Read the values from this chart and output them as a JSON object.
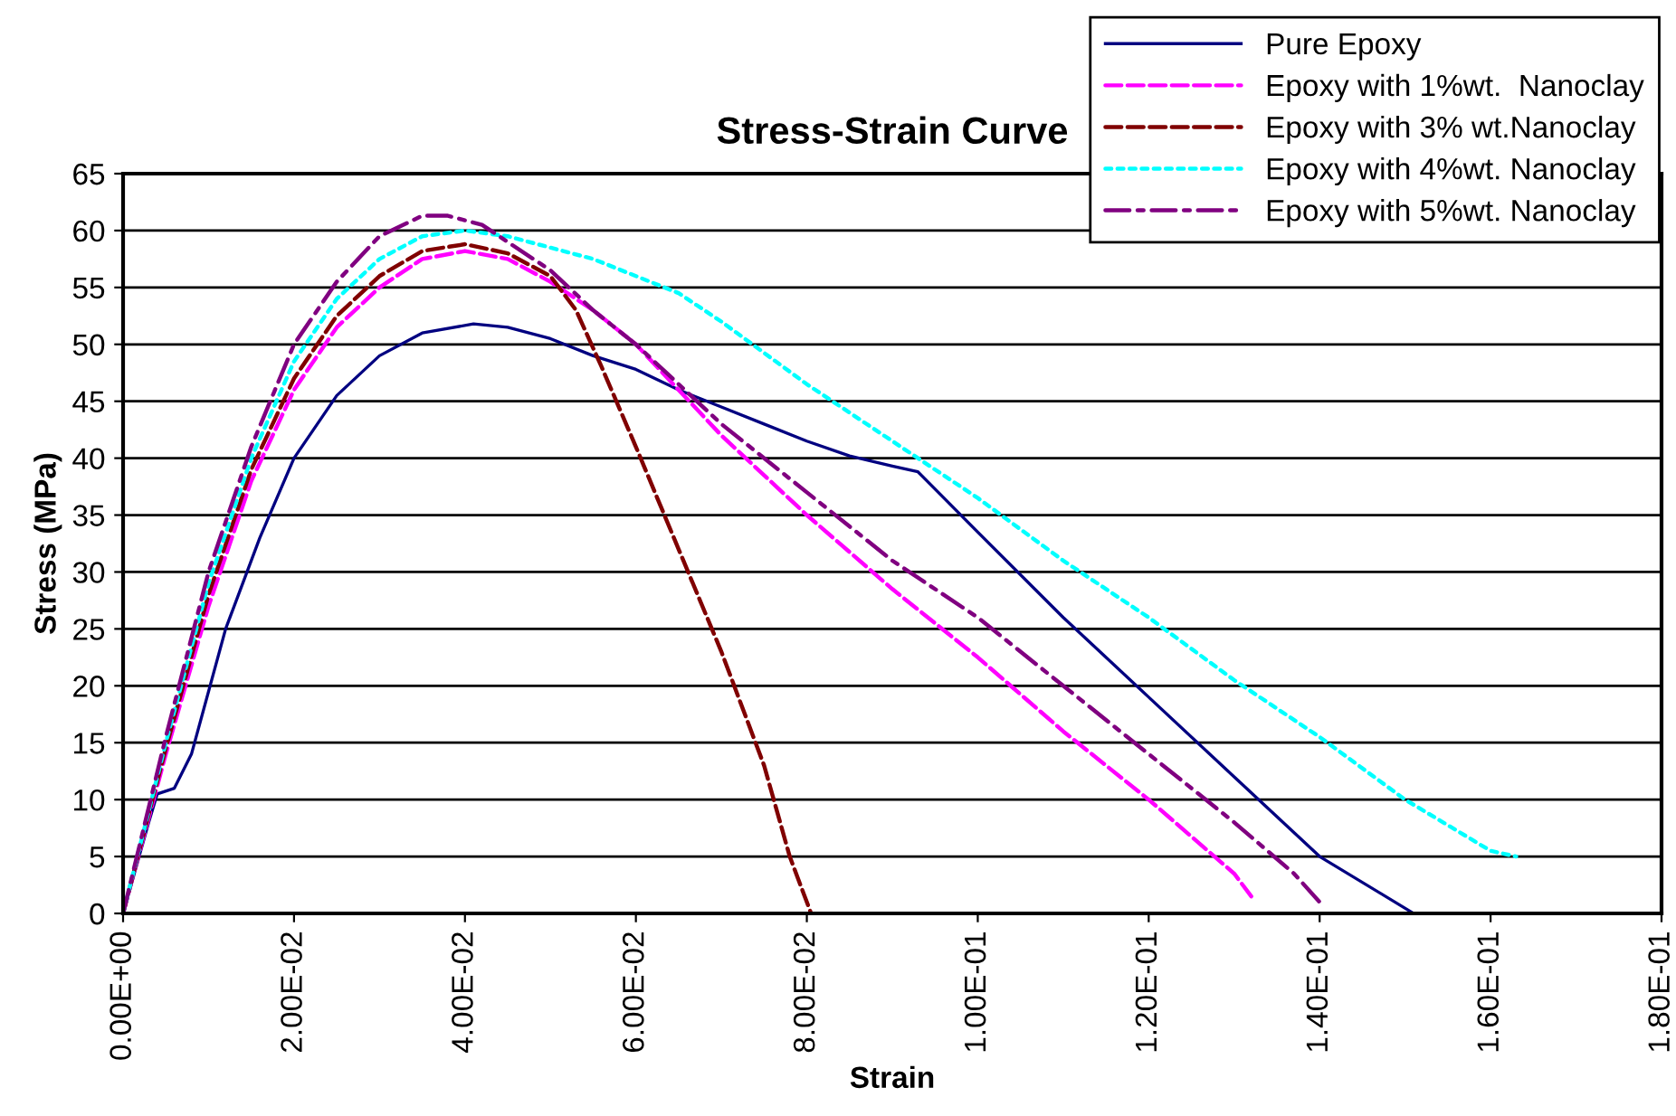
{
  "chart_data": {
    "type": "line",
    "title": "Stress-Strain Curve",
    "xlabel": "Strain",
    "ylabel": "Stress (MPa)",
    "xlim": [
      0,
      0.18
    ],
    "ylim": [
      0,
      65
    ],
    "xticks": [
      {
        "value": 0,
        "label": "0.00E+00"
      },
      {
        "value": 0.02,
        "label": "2.00E-02"
      },
      {
        "value": 0.04,
        "label": "4.00E-02"
      },
      {
        "value": 0.06,
        "label": "6.00E-02"
      },
      {
        "value": 0.08,
        "label": "8.00E-02"
      },
      {
        "value": 0.1,
        "label": "1.00E-01"
      },
      {
        "value": 0.12,
        "label": "1.20E-01"
      },
      {
        "value": 0.14,
        "label": "1.40E-01"
      },
      {
        "value": 0.16,
        "label": "1.60E-01"
      },
      {
        "value": 0.18,
        "label": "1.80E-01"
      }
    ],
    "yticks": [
      0,
      5,
      10,
      15,
      20,
      25,
      30,
      35,
      40,
      45,
      50,
      55,
      60,
      65
    ],
    "grid": "y",
    "legend": "top right",
    "marker": "none",
    "series": [
      {
        "name": "Pure Epoxy",
        "color": "#000080",
        "line_style": "solid",
        "x": [
          0,
          0.003,
          0.004,
          0.006,
          0.008,
          0.012,
          0.016,
          0.02,
          0.025,
          0.03,
          0.035,
          0.041,
          0.045,
          0.05,
          0.055,
          0.06,
          0.065,
          0.07,
          0.075,
          0.08,
          0.085,
          0.09,
          0.093,
          0.1,
          0.11,
          0.12,
          0.13,
          0.14,
          0.151
        ],
        "values": [
          0,
          8,
          10.5,
          11,
          14,
          25,
          33,
          40,
          45.5,
          49,
          51,
          51.8,
          51.5,
          50.5,
          49,
          47.8,
          46,
          44.5,
          43,
          41.5,
          40.2,
          39.3,
          38.8,
          33.5,
          26,
          19,
          12,
          5,
          0
        ]
      },
      {
        "name": "Epoxy with 1%wt.  Nanoclay",
        "color": "#ff00ff",
        "line_style": "dashed",
        "x": [
          0,
          0.005,
          0.01,
          0.015,
          0.02,
          0.025,
          0.03,
          0.035,
          0.04,
          0.045,
          0.05,
          0.055,
          0.06,
          0.065,
          0.07,
          0.08,
          0.09,
          0.1,
          0.11,
          0.12,
          0.13,
          0.132
        ],
        "values": [
          0,
          14,
          27,
          38,
          46,
          51.5,
          55,
          57.5,
          58.2,
          57.5,
          55.5,
          53,
          50,
          46,
          42,
          35,
          28.5,
          22.5,
          16,
          10,
          3.5,
          1.5
        ]
      },
      {
        "name": "Epoxy with 3% wt.Nanoclay",
        "color": "#800000",
        "line_style": "dashed",
        "x": [
          0,
          0.005,
          0.01,
          0.015,
          0.02,
          0.025,
          0.03,
          0.035,
          0.04,
          0.045,
          0.05,
          0.053,
          0.056,
          0.06,
          0.065,
          0.07,
          0.075,
          0.078,
          0.0805
        ],
        "values": [
          0,
          14.5,
          28,
          39,
          47,
          52.5,
          56,
          58.2,
          58.8,
          58,
          56,
          53,
          48,
          41,
          32,
          23,
          13,
          5,
          0
        ]
      },
      {
        "name": "Epoxy with 4%wt. Nanoclay",
        "color": "#00ffff",
        "line_style": "dotted",
        "x": [
          0,
          0.005,
          0.01,
          0.015,
          0.02,
          0.025,
          0.03,
          0.035,
          0.04,
          0.045,
          0.05,
          0.055,
          0.06,
          0.065,
          0.07,
          0.08,
          0.09,
          0.1,
          0.11,
          0.12,
          0.13,
          0.14,
          0.15,
          0.16,
          0.163
        ],
        "values": [
          0,
          15,
          29,
          40,
          48.5,
          54,
          57.5,
          59.5,
          60,
          59.5,
          58.5,
          57.5,
          56,
          54.5,
          52,
          46.5,
          41.5,
          36.5,
          31,
          26,
          20.5,
          15.5,
          10,
          5.5,
          5
        ]
      },
      {
        "name": "Epoxy with 5%wt. Nanoclay",
        "color": "#800080",
        "line_style": "dashdot",
        "x": [
          0,
          0.005,
          0.01,
          0.015,
          0.02,
          0.025,
          0.03,
          0.035,
          0.038,
          0.042,
          0.045,
          0.05,
          0.055,
          0.06,
          0.065,
          0.07,
          0.08,
          0.09,
          0.1,
          0.11,
          0.12,
          0.13,
          0.137,
          0.14
        ],
        "values": [
          0,
          15.5,
          30,
          41,
          50,
          55.5,
          59.5,
          61.3,
          61.3,
          60.5,
          59,
          56.5,
          53,
          50,
          46.5,
          43,
          37,
          31,
          26,
          20,
          14,
          8,
          3.5,
          1
        ]
      }
    ]
  }
}
